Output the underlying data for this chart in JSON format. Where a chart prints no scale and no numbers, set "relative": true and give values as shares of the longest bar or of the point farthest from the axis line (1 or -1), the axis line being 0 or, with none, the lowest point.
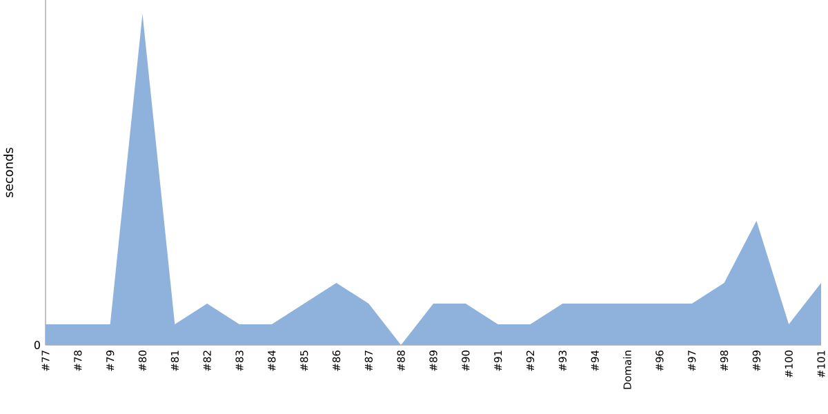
{
  "chart_data": {
    "type": "area",
    "relative": true,
    "ylabel": "seconds",
    "annotations": [
      "0"
    ],
    "color": "#8fb2dc",
    "categories": [
      "#77",
      "#78",
      "#79",
      "#80",
      "#81",
      "#82",
      "#83",
      "#84",
      "#85",
      "#86",
      "#87",
      "#88",
      "#89",
      "#90",
      "#91",
      "#92",
      "#93",
      "#94",
      "Domain",
      "#96",
      "#97",
      "#98",
      "#99",
      "#100",
      "#101"
    ],
    "values": [
      0.0625,
      0.0625,
      0.0625,
      1,
      0.0625,
      0.125,
      0.0625,
      0.0625,
      0.125,
      0.1875,
      0.125,
      0,
      0.125,
      0.125,
      0.0625,
      0.0625,
      0.125,
      0.125,
      0.125,
      0.125,
      0.125,
      0.1875,
      0.375,
      0.0625,
      0.1875
    ]
  }
}
